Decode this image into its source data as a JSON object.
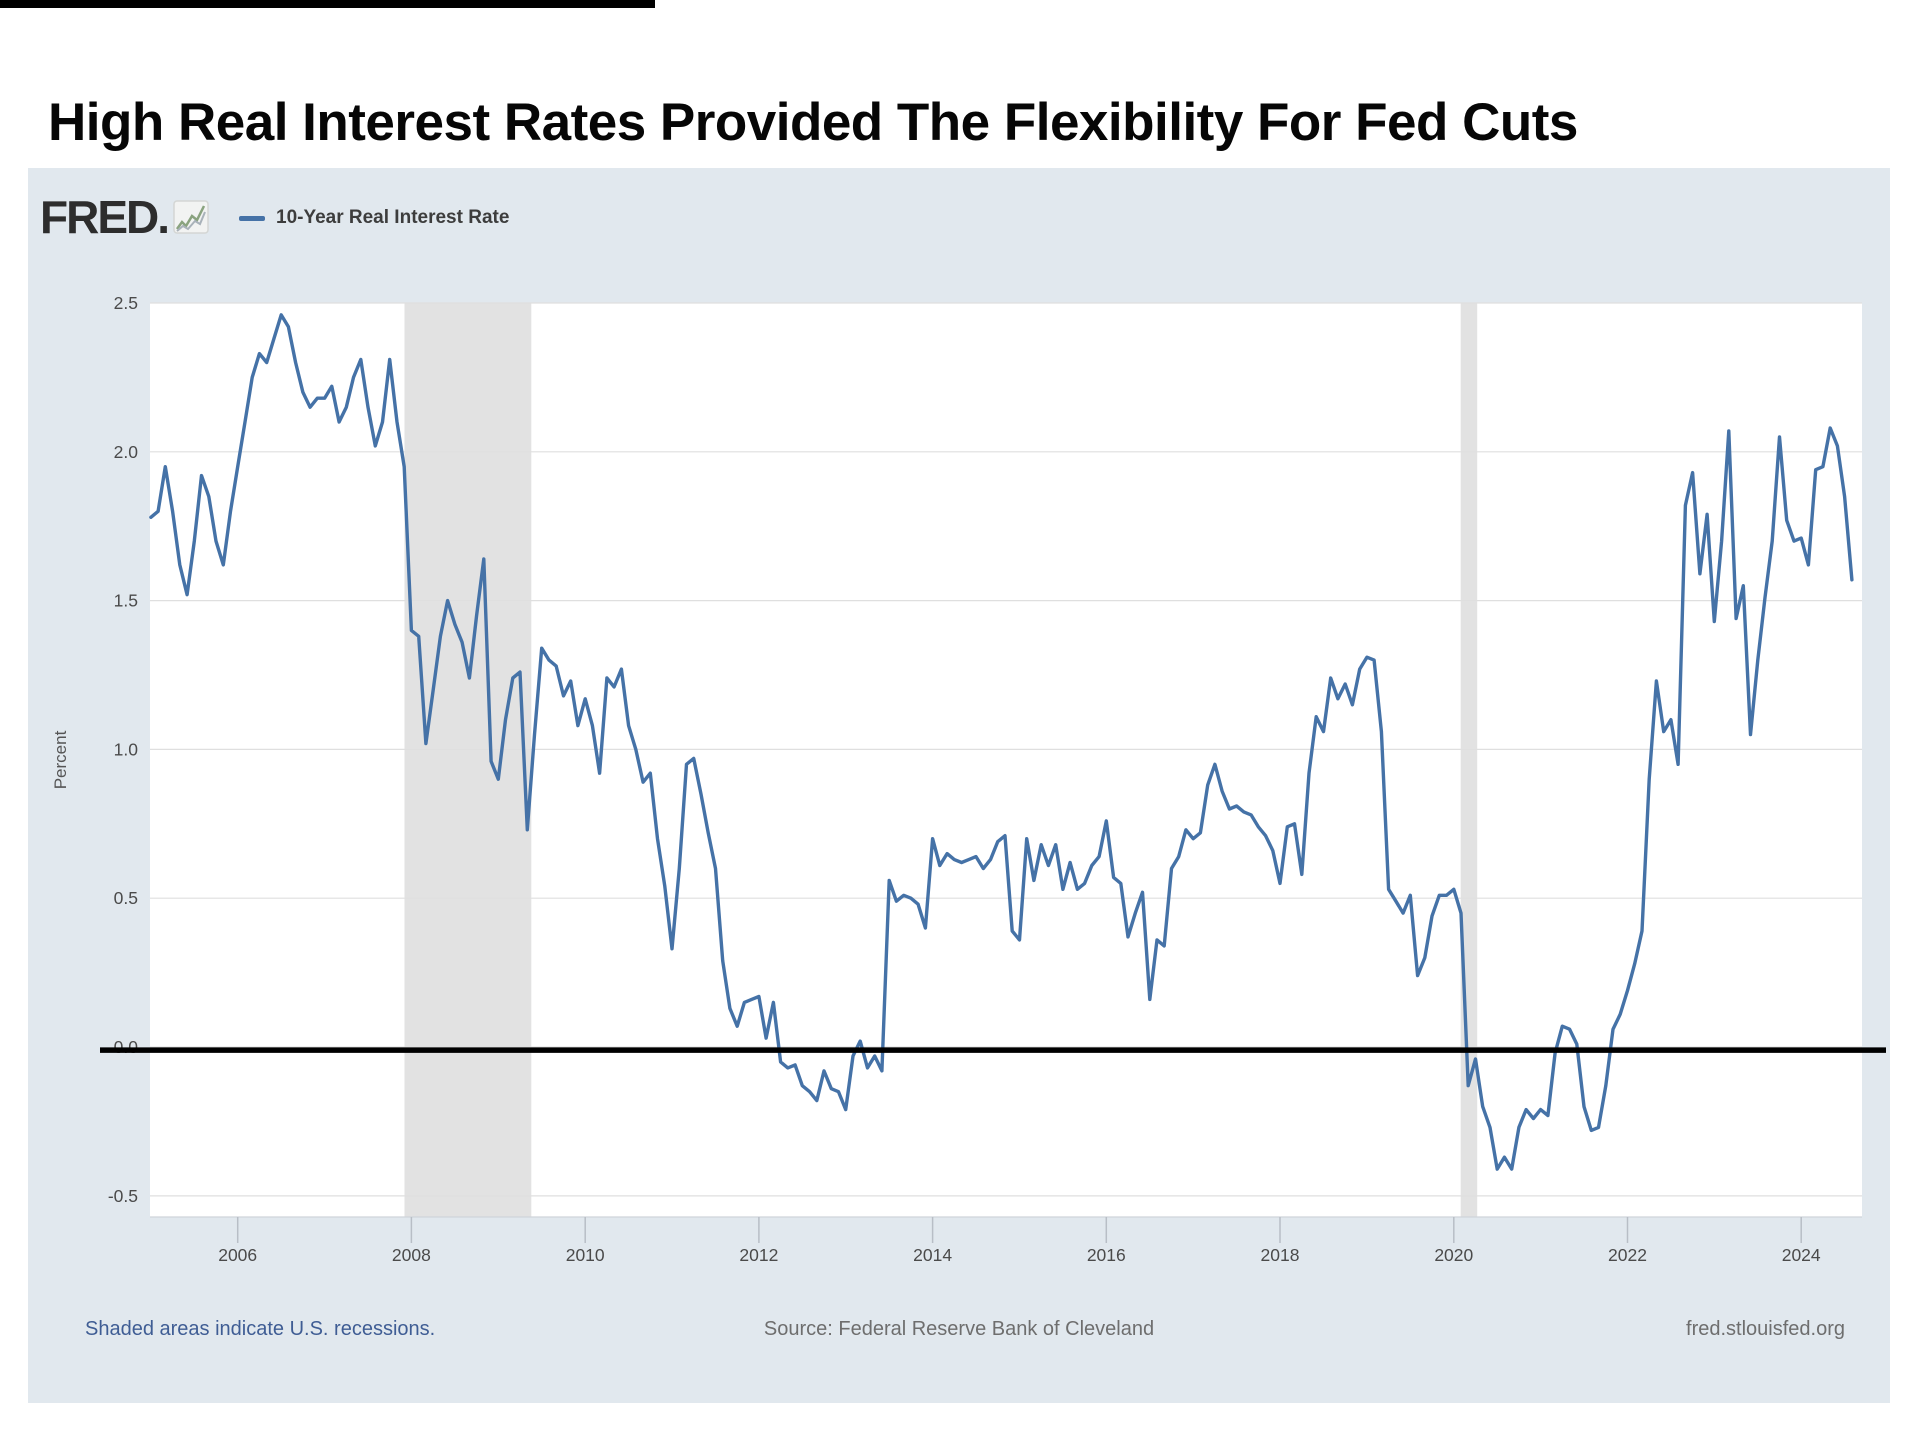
{
  "page": {
    "title": "High Real Interest Rates Provided The Flexibility For Fed Cuts"
  },
  "chart": {
    "brand": "FRED.",
    "legend_label": "10-Year Real Interest Rate",
    "ylabel": "Percent",
    "footer": {
      "left": "Shaded areas indicate U.S. recessions.",
      "center": "Source: Federal Reserve Bank of Cleveland",
      "right": "fred.stlouisfed.org"
    },
    "colors": {
      "line": "#4572a7",
      "panel_bg": "#e1e8ee",
      "plot_bg": "#ffffff",
      "grid": "#dfdfdf",
      "recession_band": "#e2e2e2",
      "zero_line": "#000000",
      "axis_text": "#4a4a4a",
      "tick_mark": "#b8bec6",
      "note_blue": "#3f5d94",
      "note_gray": "#6e6e6e"
    }
  },
  "chart_data": {
    "type": "line",
    "title": "",
    "ylabel": "Percent",
    "xlabel": "",
    "grid": true,
    "legend_position": "top-left",
    "xlim": [
      2004.99,
      2024.7
    ],
    "ylim": [
      -0.571,
      2.5
    ],
    "xticks": [
      2006,
      2008,
      2010,
      2012,
      2014,
      2016,
      2018,
      2020,
      2022,
      2024
    ],
    "yticks": [
      -0.5,
      0.0,
      0.5,
      1.0,
      1.5,
      2.0,
      2.5
    ],
    "zero_line": 0.0,
    "recession_bands": [
      [
        2007.92,
        2009.38
      ],
      [
        2020.08,
        2020.27
      ]
    ],
    "series": [
      {
        "name": "10-Year Real Interest Rate",
        "x_start": 2005.0,
        "x_step_years": 0.0833333,
        "values": [
          1.78,
          1.8,
          1.95,
          1.8,
          1.62,
          1.52,
          1.7,
          1.92,
          1.85,
          1.7,
          1.62,
          1.8,
          1.95,
          2.1,
          2.25,
          2.33,
          2.3,
          2.38,
          2.46,
          2.42,
          2.3,
          2.2,
          2.15,
          2.18,
          2.18,
          2.22,
          2.1,
          2.15,
          2.25,
          2.31,
          2.15,
          2.02,
          2.1,
          2.31,
          2.1,
          1.95,
          1.4,
          1.38,
          1.02,
          1.2,
          1.38,
          1.5,
          1.42,
          1.36,
          1.24,
          1.45,
          1.64,
          0.96,
          0.9,
          1.1,
          1.24,
          1.26,
          0.73,
          1.05,
          1.34,
          1.3,
          1.28,
          1.18,
          1.23,
          1.08,
          1.17,
          1.08,
          0.92,
          1.24,
          1.21,
          1.27,
          1.08,
          1.0,
          0.89,
          0.92,
          0.7,
          0.54,
          0.33,
          0.6,
          0.95,
          0.97,
          0.85,
          0.72,
          0.6,
          0.29,
          0.13,
          0.07,
          0.15,
          0.16,
          0.17,
          0.03,
          0.15,
          -0.05,
          -0.07,
          -0.06,
          -0.13,
          -0.15,
          -0.18,
          -0.08,
          -0.14,
          -0.15,
          -0.21,
          -0.03,
          0.02,
          -0.07,
          -0.03,
          -0.08,
          0.56,
          0.49,
          0.51,
          0.5,
          0.48,
          0.4,
          0.7,
          0.61,
          0.65,
          0.63,
          0.62,
          0.63,
          0.64,
          0.6,
          0.63,
          0.69,
          0.71,
          0.39,
          0.36,
          0.7,
          0.56,
          0.68,
          0.61,
          0.68,
          0.53,
          0.62,
          0.53,
          0.55,
          0.61,
          0.64,
          0.76,
          0.57,
          0.55,
          0.37,
          0.45,
          0.52,
          0.16,
          0.36,
          0.34,
          0.6,
          0.64,
          0.73,
          0.7,
          0.72,
          0.88,
          0.95,
          0.86,
          0.8,
          0.81,
          0.79,
          0.78,
          0.74,
          0.71,
          0.66,
          0.55,
          0.74,
          0.75,
          0.58,
          0.92,
          1.11,
          1.06,
          1.24,
          1.17,
          1.22,
          1.15,
          1.27,
          1.31,
          1.3,
          1.06,
          0.53,
          0.49,
          0.45,
          0.51,
          0.24,
          0.3,
          0.44,
          0.51,
          0.51,
          0.53,
          0.45,
          -0.13,
          -0.04,
          -0.2,
          -0.27,
          -0.41,
          -0.37,
          -0.41,
          -0.27,
          -0.21,
          -0.24,
          -0.21,
          -0.23,
          -0.02,
          0.07,
          0.06,
          0.01,
          -0.2,
          -0.28,
          -0.27,
          -0.13,
          0.06,
          0.11,
          0.19,
          0.28,
          0.39,
          0.9,
          1.23,
          1.06,
          1.1,
          0.95,
          1.82,
          1.93,
          1.59,
          1.79,
          1.43,
          1.7,
          2.07,
          1.44,
          1.55,
          1.05,
          1.3,
          1.51,
          1.7,
          2.05,
          1.77,
          1.7,
          1.71,
          1.62,
          1.94,
          1.95,
          2.08,
          2.02,
          1.85,
          1.57
        ]
      }
    ]
  }
}
